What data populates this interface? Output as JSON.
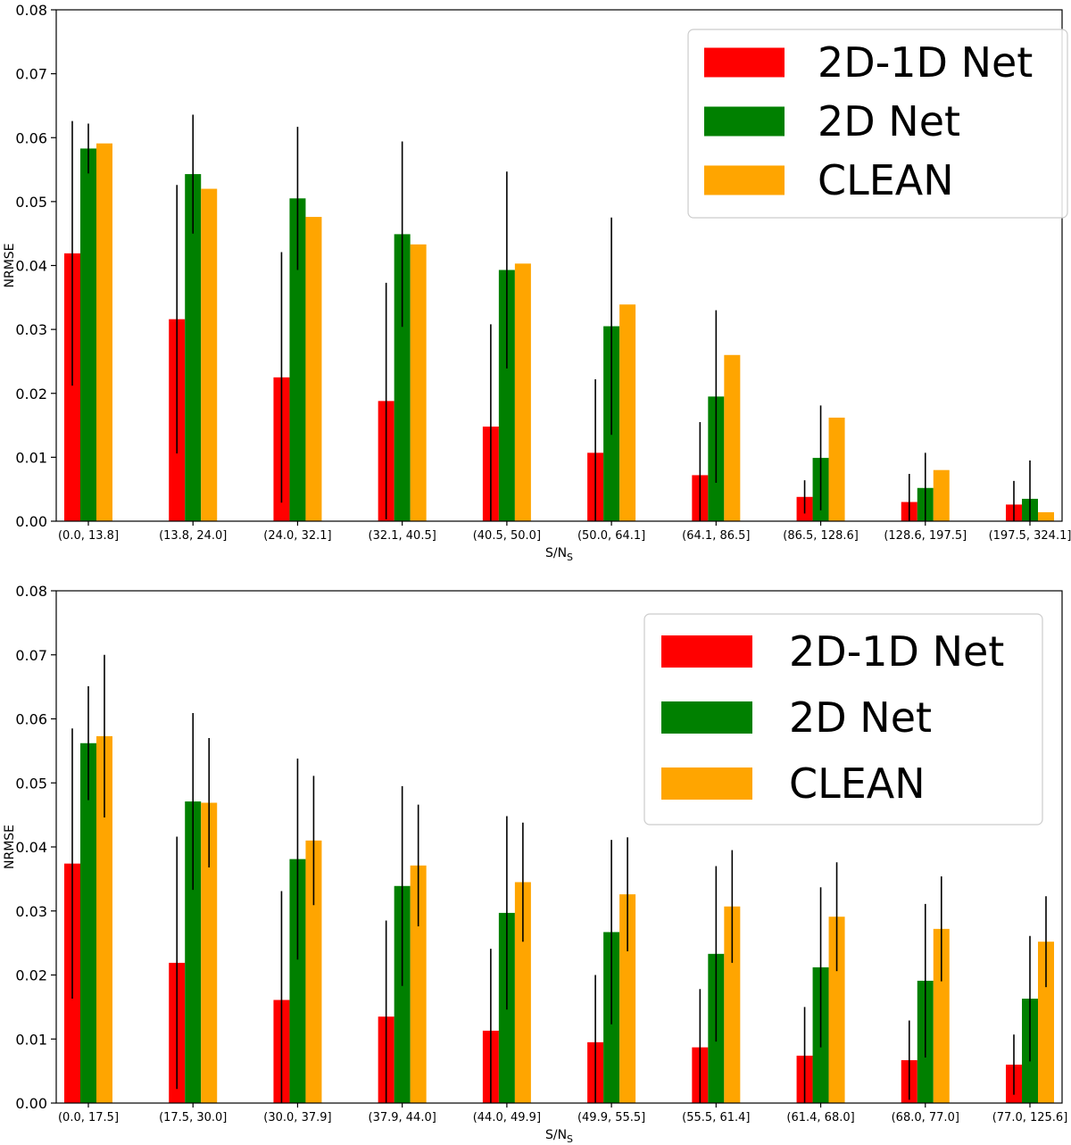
{
  "chart_data": [
    {
      "type": "bar",
      "title": "",
      "xlabel": "S/N",
      "xlabel_sub": "S",
      "ylabel": "NRMSE",
      "ylim": [
        0,
        0.08
      ],
      "yticks": [
        "0.00",
        "0.01",
        "0.02",
        "0.03",
        "0.04",
        "0.05",
        "0.06",
        "0.07",
        "0.08"
      ],
      "legend_position": "top-right",
      "categories": [
        "(0.0, 13.8]",
        "(13.8, 24.0]",
        "(24.0, 32.1]",
        "(32.1, 40.5]",
        "(40.5, 50.0]",
        "(50.0, 64.1]",
        "(64.1, 86.5]",
        "(86.5, 128.6]",
        "(128.6, 197.5]",
        "(197.5, 324.1]"
      ],
      "series": [
        {
          "name": "2D-1D Net",
          "color": "#ff0000",
          "values": [
            0.0419,
            0.0316,
            0.0225,
            0.0188,
            0.0148,
            0.0107,
            0.0072,
            0.0038,
            0.003,
            0.0026
          ],
          "error": [
            0.0207,
            0.021,
            0.0196,
            0.0185,
            0.016,
            0.0115,
            0.0083,
            0.0026,
            0.0044,
            0.0037
          ]
        },
        {
          "name": "2D Net",
          "color": "#008000",
          "values": [
            0.0583,
            0.0543,
            0.0505,
            0.0449,
            0.0393,
            0.0305,
            0.0195,
            0.0099,
            0.0052,
            0.0035
          ],
          "error": [
            0.0039,
            0.0093,
            0.0112,
            0.0145,
            0.0154,
            0.017,
            0.0135,
            0.0082,
            0.0055,
            0.006
          ]
        },
        {
          "name": "CLEAN",
          "color": "#ffa500",
          "values": [
            0.0591,
            0.052,
            0.0476,
            0.0433,
            0.0403,
            0.0339,
            0.026,
            0.0162,
            0.008,
            0.0014
          ]
        }
      ]
    },
    {
      "type": "bar",
      "title": "",
      "xlabel": "S/N",
      "xlabel_sub": "S",
      "ylabel": "NRMSE",
      "ylim": [
        0,
        0.08
      ],
      "yticks": [
        "0.00",
        "0.01",
        "0.02",
        "0.03",
        "0.04",
        "0.05",
        "0.06",
        "0.07",
        "0.08"
      ],
      "legend_position": "top-right",
      "categories": [
        "(0.0, 17.5]",
        "(17.5, 30.0]",
        "(30.0, 37.9]",
        "(37.9, 44.0]",
        "(44.0, 49.9]",
        "(49.9, 55.5]",
        "(55.5, 61.4]",
        "(61.4, 68.0]",
        "(68.0, 77.0]",
        "(77.0, 125.6]"
      ],
      "series": [
        {
          "name": "2D-1D Net",
          "color": "#ff0000",
          "values": [
            0.0374,
            0.0219,
            0.0161,
            0.0135,
            0.0113,
            0.0095,
            0.0087,
            0.0074,
            0.0067,
            0.006
          ],
          "error": [
            0.0211,
            0.0197,
            0.017,
            0.015,
            0.0128,
            0.0105,
            0.0091,
            0.0076,
            0.0062,
            0.0047
          ]
        },
        {
          "name": "2D Net",
          "color": "#008000",
          "values": [
            0.0562,
            0.0471,
            0.0381,
            0.0339,
            0.0297,
            0.0267,
            0.0233,
            0.0212,
            0.0191,
            0.0163
          ],
          "error": [
            0.0089,
            0.0138,
            0.0157,
            0.0156,
            0.0151,
            0.0144,
            0.0137,
            0.0125,
            0.012,
            0.0098
          ]
        },
        {
          "name": "CLEAN",
          "color": "#ffa500",
          "values": [
            0.0573,
            0.0469,
            0.041,
            0.0371,
            0.0345,
            0.0326,
            0.0307,
            0.0291,
            0.0272,
            0.0252
          ],
          "error": [
            0.0127,
            0.0101,
            0.0101,
            0.0095,
            0.0093,
            0.0089,
            0.0088,
            0.0085,
            0.0082,
            0.0071
          ]
        }
      ]
    }
  ]
}
